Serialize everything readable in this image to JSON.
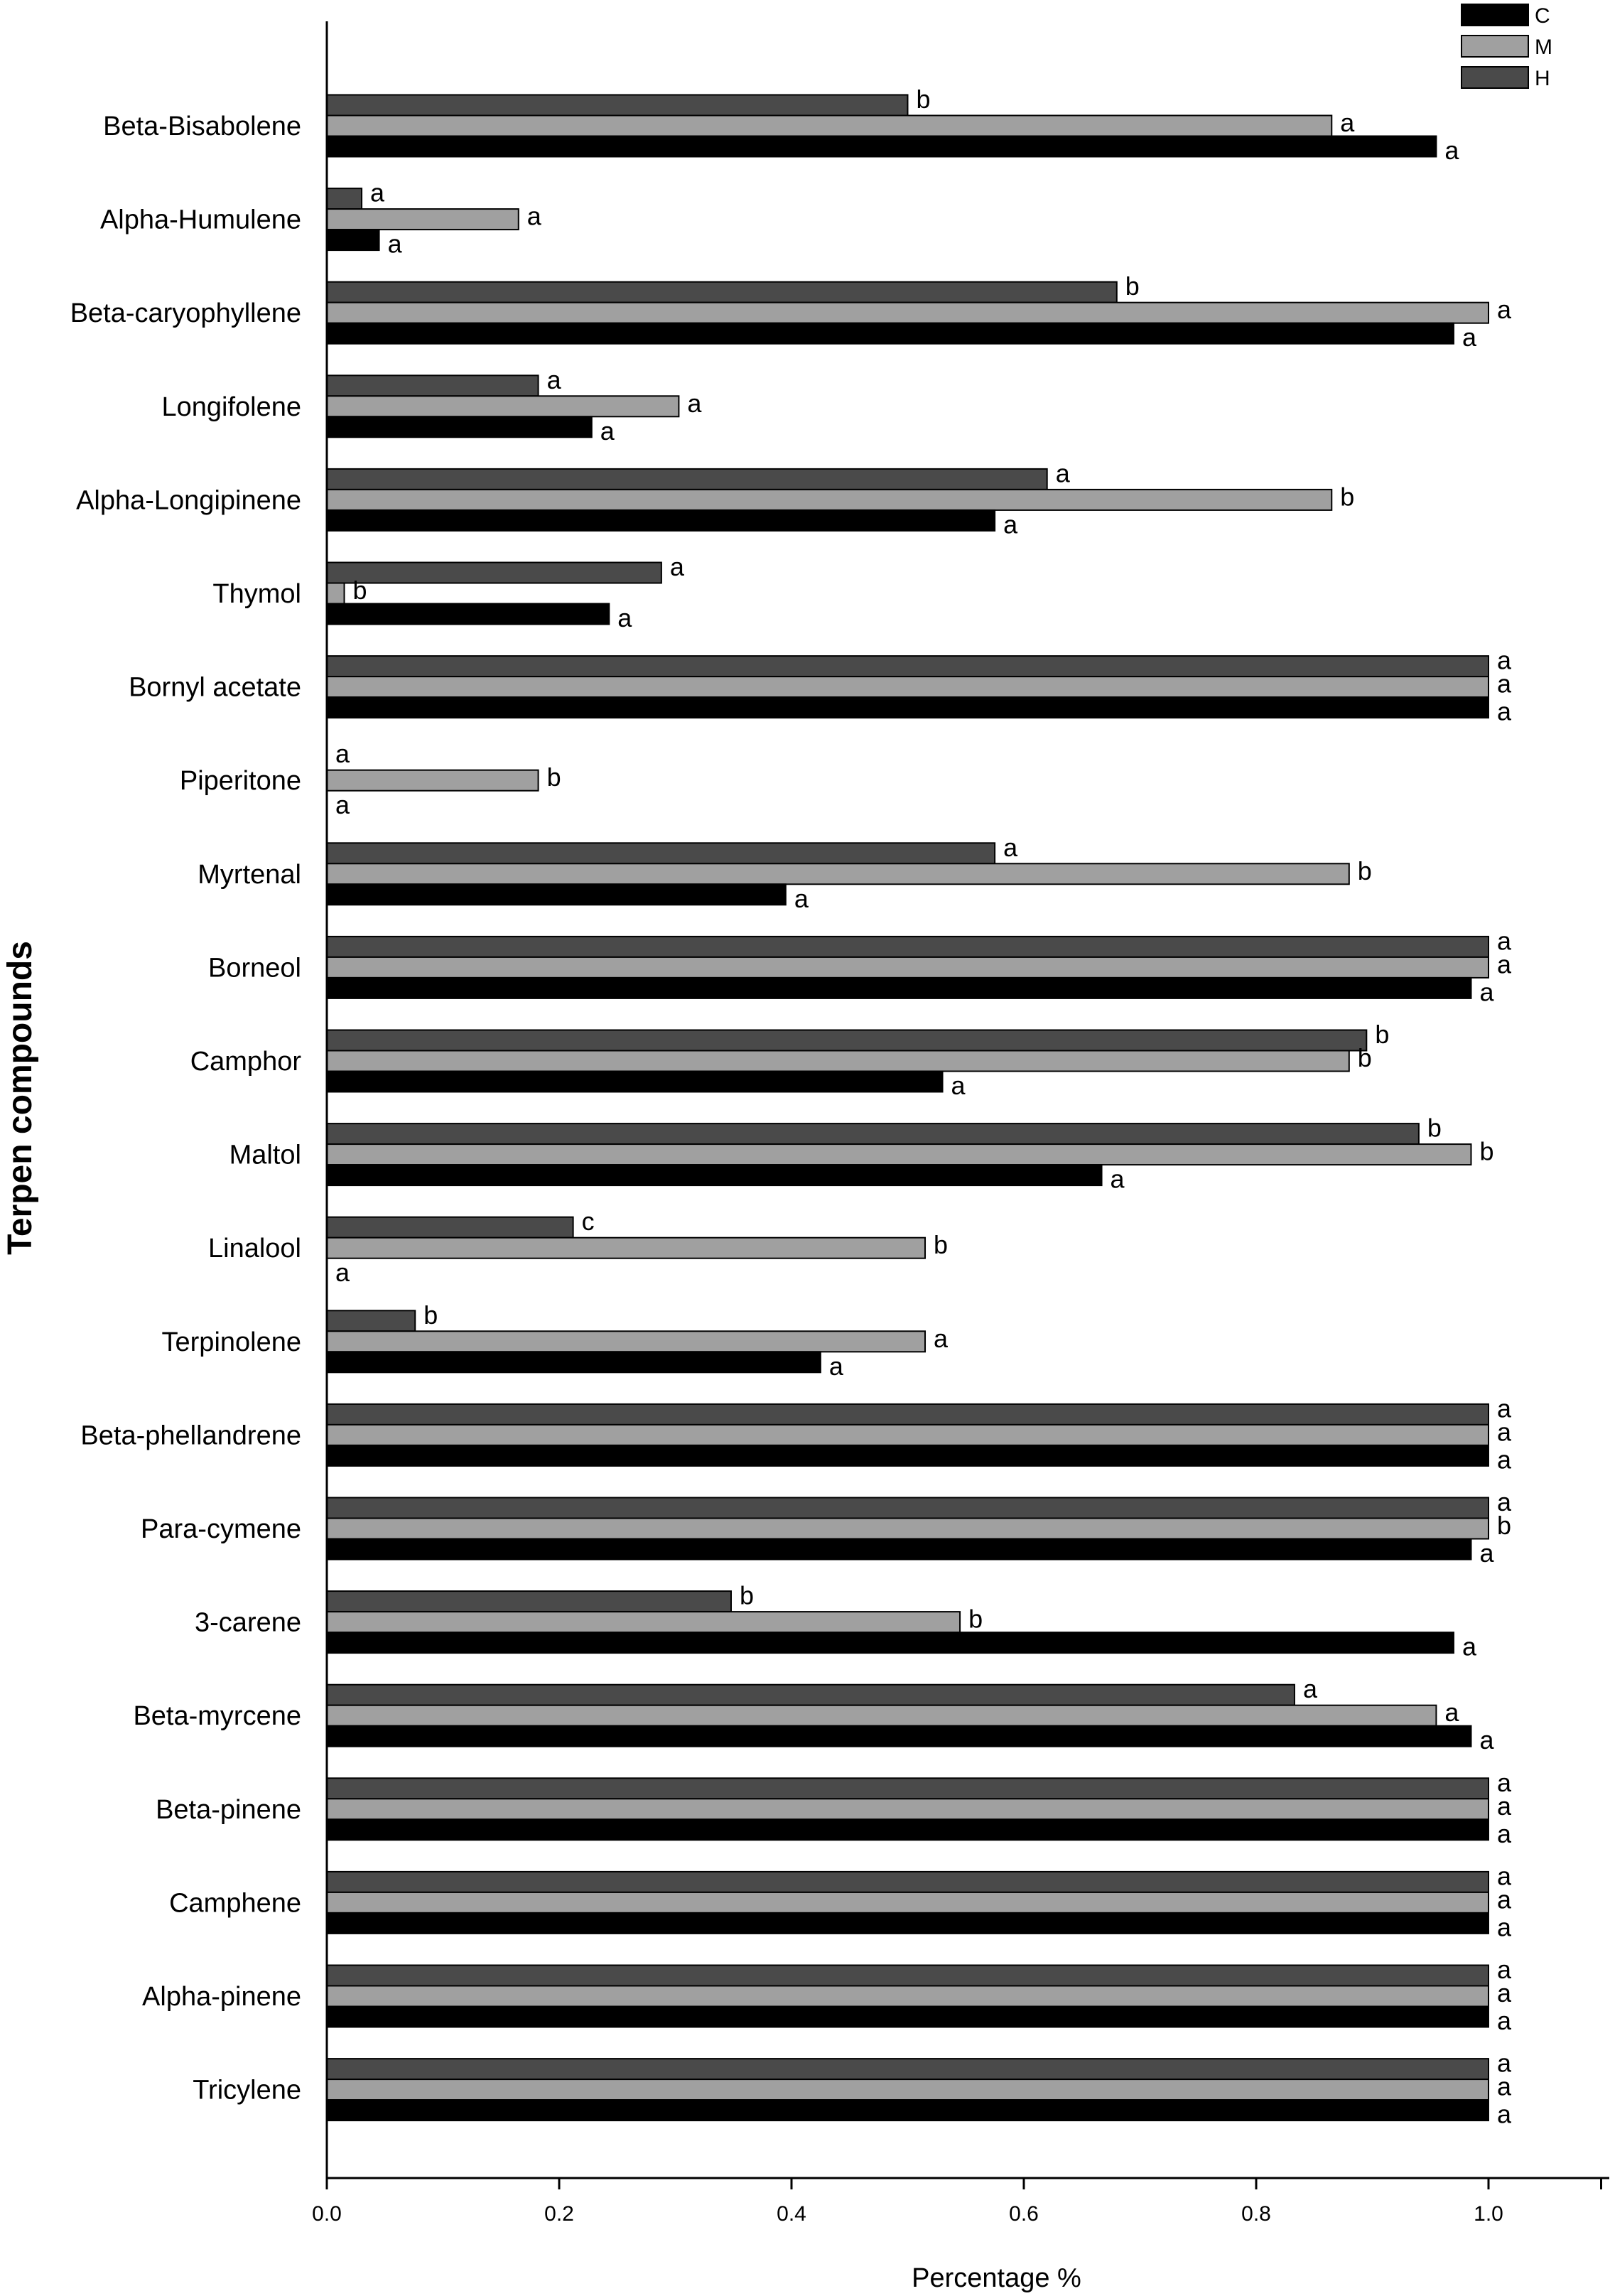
{
  "chart_data": {
    "type": "bar",
    "orientation": "horizontal",
    "xlabel": "Percentage %",
    "ylabel": "Terpen compounds",
    "xlim": [
      0,
      1.1
    ],
    "xticks": [
      "0.0",
      "0.2",
      "0.4",
      "0.6",
      "0.8",
      "1.0"
    ],
    "grid": false,
    "legend_position": "top-right",
    "series": [
      {
        "name": "C",
        "color": "#000000"
      },
      {
        "name": "M",
        "color": "#a0a0a0"
      },
      {
        "name": "H",
        "color": "#4a4a4a"
      }
    ],
    "categories": [
      {
        "name": "Beta-Bisabolene",
        "values": {
          "C": 0.955,
          "M": 0.865,
          "H": 0.5
        },
        "labels": {
          "C": "a",
          "M": "a",
          "H": "b"
        }
      },
      {
        "name": "Alpha-Humulene",
        "values": {
          "C": 0.045,
          "M": 0.165,
          "H": 0.03
        },
        "labels": {
          "C": "a",
          "M": "a",
          "H": "a"
        }
      },
      {
        "name": "Beta-caryophyllene",
        "values": {
          "C": 0.97,
          "M": 1.0,
          "H": 0.68
        },
        "labels": {
          "C": "a",
          "M": "a",
          "H": "b"
        }
      },
      {
        "name": "Longifolene",
        "values": {
          "C": 0.228,
          "M": 0.303,
          "H": 0.182
        },
        "labels": {
          "C": "a",
          "M": "a",
          "H": "a"
        }
      },
      {
        "name": "Alpha-Longipinene",
        "values": {
          "C": 0.575,
          "M": 0.865,
          "H": 0.62
        },
        "labels": {
          "C": "a",
          "M": "b",
          "H": "a"
        }
      },
      {
        "name": "Thymol",
        "values": {
          "C": 0.243,
          "M": 0.015,
          "H": 0.288
        },
        "labels": {
          "C": "a",
          "M": "b",
          "H": "a"
        }
      },
      {
        "name": "Bornyl acetate",
        "values": {
          "C": 1.0,
          "M": 1.0,
          "H": 1.0
        },
        "labels": {
          "C": "a",
          "M": "a",
          "H": "a"
        }
      },
      {
        "name": "Piperitone",
        "values": {
          "C": 0,
          "M": 0.182,
          "H": 0
        },
        "labels": {
          "C": "a",
          "M": "b",
          "H": "a"
        }
      },
      {
        "name": "Myrtenal",
        "values": {
          "C": 0.395,
          "M": 0.88,
          "H": 0.575
        },
        "labels": {
          "C": "a",
          "M": "b",
          "H": "a"
        }
      },
      {
        "name": "Borneol",
        "values": {
          "C": 0.985,
          "M": 1.0,
          "H": 1.0
        },
        "labels": {
          "C": "a",
          "M": "a",
          "H": "a"
        }
      },
      {
        "name": "Camphor",
        "values": {
          "C": 0.53,
          "M": 0.88,
          "H": 0.895
        },
        "labels": {
          "C": "a",
          "M": "b",
          "H": "b"
        }
      },
      {
        "name": "Maltol",
        "values": {
          "C": 0.667,
          "M": 0.985,
          "H": 0.94
        },
        "labels": {
          "C": "a",
          "M": "b",
          "H": "b"
        }
      },
      {
        "name": "Linalool",
        "values": {
          "C": 0,
          "M": 0.515,
          "H": 0.212
        },
        "labels": {
          "C": "a",
          "M": "b",
          "H": "c"
        }
      },
      {
        "name": "Terpinolene",
        "values": {
          "C": 0.425,
          "M": 0.515,
          "H": 0.076
        },
        "labels": {
          "C": "a",
          "M": "a",
          "H": "b"
        }
      },
      {
        "name": "Beta-phellandrene",
        "values": {
          "C": 1.0,
          "M": 1.0,
          "H": 1.0
        },
        "labels": {
          "C": "a",
          "M": "a",
          "H": "a"
        }
      },
      {
        "name": "Para-cymene",
        "values": {
          "C": 0.985,
          "M": 1.0,
          "H": 1.0
        },
        "labels": {
          "C": "a",
          "M": "b",
          "H": "a"
        }
      },
      {
        "name": "3-carene",
        "values": {
          "C": 0.97,
          "M": 0.545,
          "H": 0.348
        },
        "labels": {
          "C": "a",
          "M": "b",
          "H": "b"
        }
      },
      {
        "name": "Beta-myrcene",
        "values": {
          "C": 0.985,
          "M": 0.955,
          "H": 0.833
        },
        "labels": {
          "C": "a",
          "M": "a",
          "H": "a"
        }
      },
      {
        "name": "Beta-pinene",
        "values": {
          "C": 1.0,
          "M": 1.0,
          "H": 1.0
        },
        "labels": {
          "C": "a",
          "M": "a",
          "H": "a"
        }
      },
      {
        "name": "Camphene",
        "values": {
          "C": 1.0,
          "M": 1.0,
          "H": 1.0
        },
        "labels": {
          "C": "a",
          "M": "a",
          "H": "a"
        }
      },
      {
        "name": "Alpha-pinene",
        "values": {
          "C": 1.0,
          "M": 1.0,
          "H": 1.0
        },
        "labels": {
          "C": "a",
          "M": "a",
          "H": "a"
        }
      },
      {
        "name": "Tricylene",
        "values": {
          "C": 1.0,
          "M": 1.0,
          "H": 1.0
        },
        "labels": {
          "C": "a",
          "M": "a",
          "H": "a"
        }
      }
    ]
  }
}
